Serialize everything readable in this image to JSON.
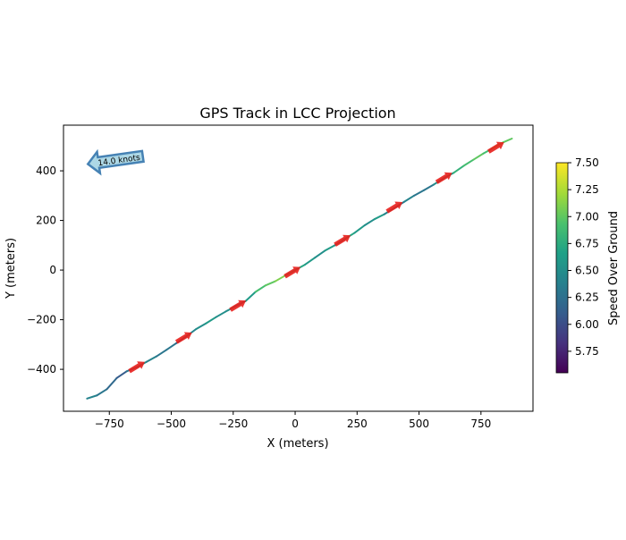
{
  "chart_data": {
    "type": "line",
    "title": "GPS Track in LCC Projection",
    "xlabel": "X (meters)",
    "ylabel": "Y (meters)",
    "xlim": [
      -935,
      960
    ],
    "ylim": [
      -569,
      584
    ],
    "xticks": [
      -750,
      -500,
      -250,
      0,
      250,
      500,
      750
    ],
    "yticks": [
      -400,
      -200,
      0,
      200,
      400
    ],
    "x": [
      -840,
      -800,
      -760,
      -720,
      -680,
      -640,
      -600,
      -560,
      -520,
      -480,
      -440,
      -400,
      -360,
      -320,
      -280,
      -240,
      -200,
      -160,
      -120,
      -80,
      -40,
      0,
      40,
      80,
      120,
      160,
      200,
      240,
      280,
      320,
      360,
      400,
      440,
      480,
      520,
      560,
      600,
      640,
      680,
      720,
      760,
      800,
      840,
      875
    ],
    "y": [
      -518,
      -505,
      -480,
      -435,
      -408,
      -392,
      -370,
      -348,
      -322,
      -295,
      -268,
      -238,
      -215,
      -190,
      -167,
      -145,
      -125,
      -88,
      -62,
      -45,
      -22,
      0,
      22,
      50,
      78,
      100,
      125,
      150,
      180,
      205,
      225,
      250,
      275,
      300,
      322,
      345,
      370,
      392,
      420,
      445,
      470,
      492,
      515,
      530
    ],
    "speed": [
      6.4,
      6.3,
      6.2,
      6.1,
      6.3,
      6.5,
      6.4,
      6.3,
      6.3,
      6.2,
      6.4,
      6.5,
      6.6,
      6.5,
      6.5,
      6.4,
      6.6,
      6.9,
      7.0,
      7.1,
      6.8,
      6.7,
      6.6,
      6.5,
      6.6,
      6.5,
      6.7,
      6.6,
      6.5,
      6.6,
      6.4,
      6.3,
      6.4,
      6.3,
      6.3,
      6.5,
      6.6,
      6.8,
      6.9,
      7.0,
      6.9,
      7.1,
      7.0,
      6.9
    ],
    "arrows": [
      {
        "x": -640,
        "y": -390
      },
      {
        "x": -450,
        "y": -272
      },
      {
        "x": -232,
        "y": -143
      },
      {
        "x": -12,
        "y": -8
      },
      {
        "x": 190,
        "y": 120
      },
      {
        "x": 400,
        "y": 254
      },
      {
        "x": 600,
        "y": 372
      },
      {
        "x": 810,
        "y": 495
      }
    ],
    "colorbar": {
      "label": "Speed Over Ground",
      "min": 5.55,
      "max": 7.5,
      "ticks": [
        "5.75",
        "6.00",
        "6.25",
        "6.50",
        "6.75",
        "7.00",
        "7.25",
        "7.50"
      ]
    },
    "annotation": {
      "text": "14.0 knots"
    },
    "colors": {
      "arrow": "#e8201c",
      "annotation_fill": "#add8e6",
      "annotation_edge": "#4682b4"
    }
  }
}
